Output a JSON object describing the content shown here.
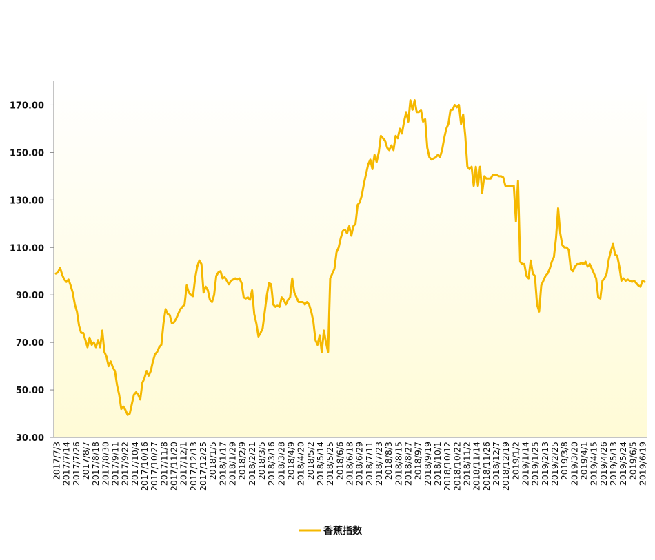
{
  "chart_data": {
    "type": "line",
    "title": "",
    "xlabel": "",
    "ylabel": "",
    "ylim": [
      30,
      180
    ],
    "yticks": [
      "30.00",
      "50.00",
      "70.00",
      "90.00",
      "110.00",
      "130.00",
      "150.00",
      "170.00"
    ],
    "grid": false,
    "legend_position": "bottom-center",
    "series_color": "#F5B800",
    "background_gradient": [
      "#FFFBD6",
      "#FFFFFF"
    ],
    "x_tick_labels": [
      "2017/7/3",
      "2017/7/14",
      "2017/7/26",
      "2017/8/7",
      "2017/8/18",
      "2017/8/30",
      "2017/9/11",
      "2017/9/22",
      "2017/10/4",
      "2017/10/16",
      "2017/10/27",
      "2017/11/8",
      "2017/11/20",
      "2017/12/1",
      "2017/12/13",
      "2017/12/25",
      "2018/1/5",
      "2018/1/17",
      "2018/1/29",
      "2018/2/9",
      "2018/2/21",
      "2018/3/5",
      "2018/3/16",
      "2018/3/28",
      "2018/4/9",
      "2018/4/20",
      "2018/5/2",
      "2018/5/14",
      "2018/5/25",
      "2018/6/6",
      "2018/6/18",
      "2018/6/29",
      "2018/7/11",
      "2018/7/23",
      "2018/8/3",
      "2018/8/15",
      "2018/8/27",
      "2018/9/7",
      "2018/9/19",
      "2018/10/1",
      "2018/10/12",
      "2018/10/22",
      "2018/11/2",
      "2018/11/14",
      "2018/11/26",
      "2018/12/7",
      "2018/12/19",
      "2019/1/2",
      "2019/1/14",
      "2019/1/25",
      "2019/2/13",
      "2019/2/25",
      "2019/3/8",
      "2019/3/20",
      "2019/4/1",
      "2019/4/15",
      "2019/4/26",
      "2019/5/13",
      "2019/5/24",
      "2019/6/5",
      "2019/6/19"
    ],
    "series": [
      {
        "name": "香蕉指数",
        "values": [
          99,
          99.5,
          101.5,
          98.5,
          96.5,
          95.5,
          96.5,
          94,
          91,
          86,
          83,
          77,
          74,
          74,
          71,
          68,
          72,
          69,
          70,
          68,
          71,
          68,
          75,
          66,
          64,
          60,
          62,
          59.5,
          58,
          52,
          48,
          42,
          43,
          41.5,
          39.5,
          40,
          44,
          48,
          49,
          48,
          46,
          53,
          55,
          58,
          56,
          58,
          62,
          65,
          66,
          68,
          69,
          78,
          84,
          82,
          81.5,
          78,
          78.5,
          80,
          82,
          84,
          85,
          86,
          94,
          91,
          90,
          89.5,
          97,
          102,
          104.5,
          103,
          91,
          93.5,
          92,
          88,
          87,
          90,
          98,
          99.5,
          100,
          97,
          97.5,
          96,
          94.5,
          96,
          96.5,
          97,
          96.5,
          97,
          95,
          89,
          88.5,
          89,
          88,
          92,
          82,
          78,
          72.5,
          74,
          76,
          83,
          90,
          95,
          94.5,
          86,
          85,
          85.5,
          85,
          89,
          88,
          86,
          88,
          89,
          97,
          91,
          89,
          87,
          87,
          87,
          86,
          87,
          86,
          83,
          79,
          71,
          69,
          73,
          66,
          75,
          70,
          66,
          97,
          99,
          101,
          108,
          110,
          114,
          117,
          117.5,
          116,
          119,
          115,
          119,
          120,
          128,
          129,
          132,
          137,
          141,
          145,
          147,
          143,
          149,
          146,
          150,
          157,
          156,
          155,
          152,
          151,
          153,
          151,
          157,
          156,
          160,
          158,
          163,
          167,
          163,
          172,
          168,
          172,
          167,
          167,
          168,
          163,
          164,
          152,
          148,
          147,
          147.5,
          148,
          149,
          148,
          151,
          156,
          160,
          162,
          168,
          168,
          170,
          169,
          170,
          162,
          166,
          157,
          144,
          143,
          144,
          136,
          144,
          136,
          144,
          133,
          140,
          139,
          139,
          139,
          140.5,
          140.5,
          140.5,
          140,
          140,
          139.5,
          136,
          136,
          136,
          136,
          136,
          121,
          138,
          104,
          103,
          103,
          98,
          97,
          104.5,
          99,
          98,
          86,
          83,
          94,
          96,
          98,
          99,
          101,
          104,
          106,
          114,
          126.5,
          116,
          111,
          110,
          110,
          109,
          101,
          100,
          102,
          103,
          103,
          103.5,
          103,
          104,
          102,
          103,
          101,
          99,
          97,
          89,
          88.5,
          96,
          97,
          99,
          105,
          108.5,
          111.5,
          107,
          106.5,
          102,
          96,
          97,
          96,
          96.5,
          96,
          95.5,
          96,
          95,
          94,
          93.5,
          96,
          95.5
        ]
      }
    ]
  }
}
